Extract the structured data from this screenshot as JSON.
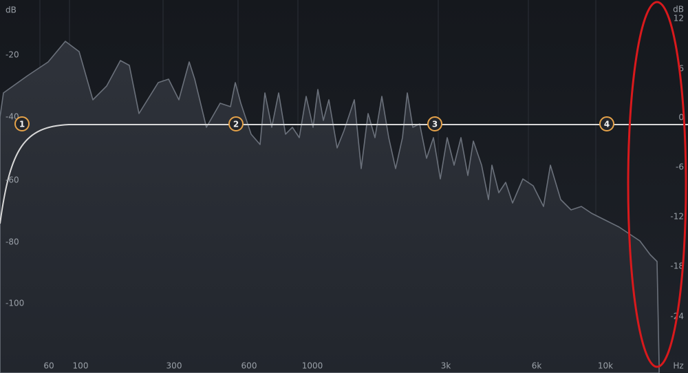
{
  "left_axis": {
    "unit": "dB",
    "labels": [
      "-20",
      "-40",
      "-60",
      "-80",
      "-100"
    ]
  },
  "right_axis": {
    "unit": "dB",
    "labels": [
      "12",
      "6",
      "0",
      "-6",
      "-12",
      "-18",
      "-24"
    ]
  },
  "frequency_axis": {
    "labels": [
      "60",
      "100",
      "300",
      "600",
      "1000",
      "3k",
      "6k",
      "10k"
    ],
    "unit": "Hz"
  },
  "nodes": [
    {
      "label": "1"
    },
    {
      "label": "2"
    },
    {
      "label": "3"
    },
    {
      "label": "4"
    }
  ]
}
